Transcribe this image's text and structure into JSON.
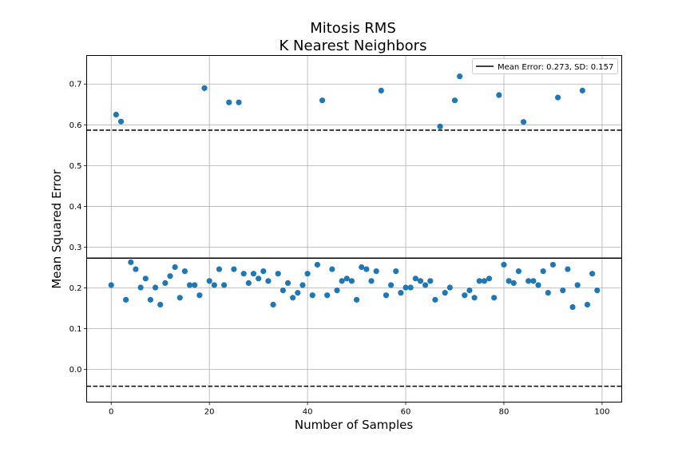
{
  "chart_data": {
    "type": "scatter",
    "title": "Mitosis RMS",
    "subtitle": "K Nearest Neighbors",
    "xlabel": "Number of Samples",
    "ylabel": "Mean Squared Error",
    "xlim": [
      -5,
      104
    ],
    "ylim": [
      -0.08,
      0.77
    ],
    "xticks": [
      0,
      20,
      40,
      60,
      80,
      100
    ],
    "yticks": [
      0.0,
      0.1,
      0.2,
      0.3,
      0.4,
      0.5,
      0.6,
      0.7
    ],
    "xtick_labels": [
      "0",
      "20",
      "40",
      "60",
      "80",
      "100"
    ],
    "ytick_labels": [
      "0.0",
      "0.1",
      "0.2",
      "0.3",
      "0.4",
      "0.5",
      "0.6",
      "0.7"
    ],
    "grid": true,
    "legend_position": "top-right",
    "legend_label": "Mean Error: 0.273, SD: 0.157",
    "marker_color": "#1f77b4",
    "mean_line": 0.273,
    "upper_bound": 0.587,
    "lower_bound": -0.041,
    "x": [
      0,
      1,
      2,
      3,
      4,
      5,
      6,
      7,
      8,
      9,
      10,
      11,
      12,
      13,
      14,
      15,
      16,
      17,
      18,
      19,
      20,
      21,
      22,
      23,
      24,
      25,
      26,
      27,
      28,
      29,
      30,
      31,
      32,
      33,
      34,
      35,
      36,
      37,
      38,
      39,
      40,
      41,
      42,
      43,
      44,
      45,
      46,
      47,
      48,
      49,
      50,
      51,
      52,
      53,
      54,
      55,
      56,
      57,
      58,
      59,
      60,
      61,
      62,
      63,
      64,
      65,
      66,
      67,
      68,
      69,
      70,
      71,
      72,
      73,
      74,
      75,
      76,
      77,
      78,
      79,
      80,
      81,
      82,
      83,
      84,
      85,
      86,
      87,
      88,
      89,
      90,
      91,
      92,
      93,
      94,
      95,
      96,
      97,
      98,
      99
    ],
    "y": [
      0.207,
      0.625,
      0.608,
      0.171,
      0.263,
      0.246,
      0.201,
      0.223,
      0.171,
      0.201,
      0.159,
      0.212,
      0.229,
      0.251,
      0.176,
      0.241,
      0.207,
      0.207,
      0.182,
      0.69,
      0.217,
      0.207,
      0.246,
      0.207,
      0.655,
      0.246,
      0.655,
      0.235,
      0.212,
      0.235,
      0.223,
      0.241,
      0.217,
      0.159,
      0.235,
      0.194,
      0.212,
      0.176,
      0.188,
      0.207,
      0.235,
      0.182,
      0.257,
      0.66,
      0.182,
      0.246,
      0.194,
      0.217,
      0.223,
      0.217,
      0.171,
      0.251,
      0.246,
      0.217,
      0.241,
      0.684,
      0.182,
      0.207,
      0.241,
      0.188,
      0.201,
      0.201,
      0.223,
      0.217,
      0.207,
      0.217,
      0.171,
      0.596,
      0.188,
      0.201,
      0.66,
      0.719,
      0.182,
      0.194,
      0.176,
      0.217,
      0.217,
      0.223,
      0.176,
      0.673,
      0.257,
      0.217,
      0.212,
      0.241,
      0.607,
      0.217,
      0.217,
      0.207,
      0.241,
      0.188,
      0.257,
      0.667,
      0.194,
      0.246,
      0.153,
      0.207,
      0.684,
      0.159,
      0.235,
      0.194
    ]
  }
}
